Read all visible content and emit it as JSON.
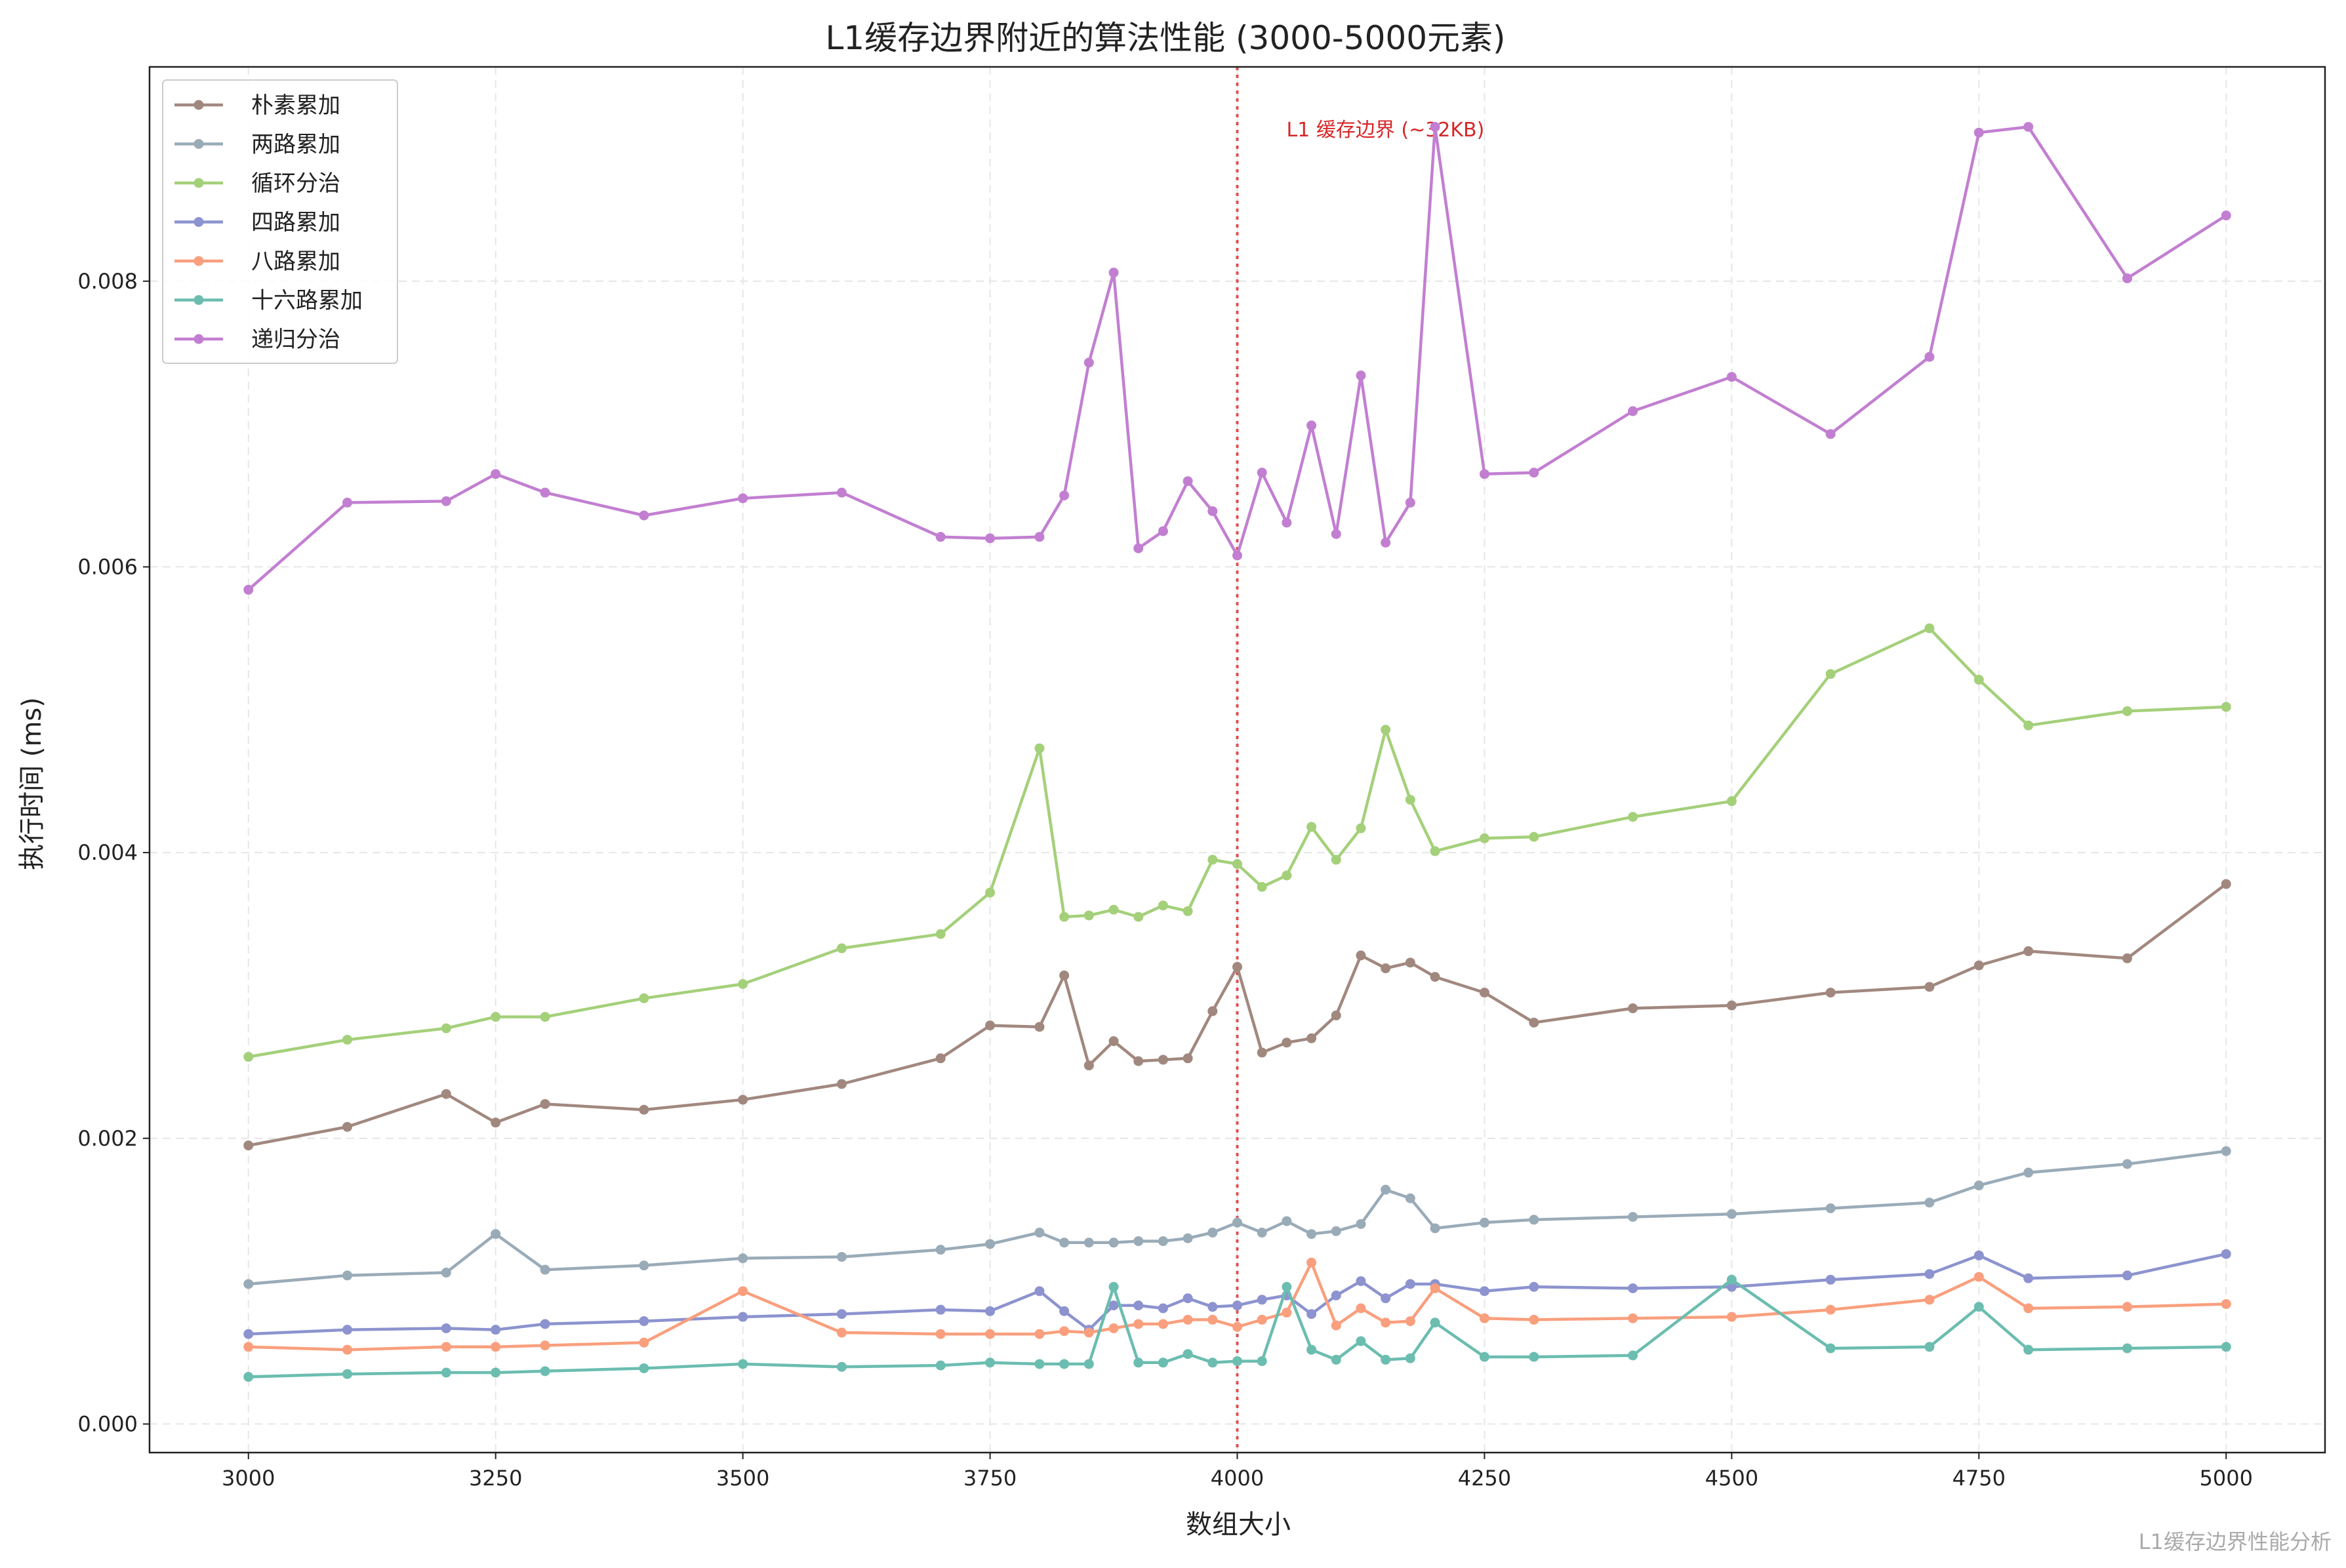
{
  "chart_data": {
    "type": "line",
    "title": "L1缓存边界附近的算法性能 (3000-5000元素)",
    "xlabel": "数组大小",
    "ylabel": "执行时间 (ms)",
    "xlim": [
      2900,
      5100
    ],
    "ylim": [
      -0.0002,
      0.0095
    ],
    "x_ticks": [
      3000,
      3250,
      3500,
      3750,
      4000,
      4250,
      4500,
      4750,
      5000
    ],
    "y_ticks": [
      0.0,
      0.002,
      0.004,
      0.006,
      0.008
    ],
    "y_tick_labels": [
      "0.000",
      "0.002",
      "0.004",
      "0.006",
      "0.008"
    ],
    "grid": true,
    "legend_position": "top-left",
    "vline": {
      "x": 4000,
      "label": "L1 缓存边界 (~32KB)",
      "color": "#d62728",
      "label_y": 0.00905
    },
    "watermark": "L1缓存边界性能分析",
    "series": [
      {
        "name": "朴素累加",
        "color": "#a1887f",
        "x": [
          3000,
          3100,
          3200,
          3250,
          3300,
          3400,
          3500,
          3600,
          3700,
          3750,
          3800,
          3825,
          3850,
          3875,
          3900,
          3925,
          3950,
          3975,
          4000,
          4025,
          4050,
          4075,
          4100,
          4125,
          4150,
          4175,
          4200,
          4250,
          4300,
          4400,
          4500,
          4600,
          4700,
          4750,
          4800,
          4900,
          5000
        ],
        "values": [
          0.00195,
          0.00208,
          0.00231,
          0.00211,
          0.00224,
          0.0022,
          0.00227,
          0.00238,
          0.00256,
          0.00279,
          0.00278,
          0.00314,
          0.00251,
          0.00268,
          0.00254,
          0.00255,
          0.00256,
          0.00289,
          0.0032,
          0.0026,
          0.00267,
          0.0027,
          0.00286,
          0.00328,
          0.00319,
          0.00323,
          0.00313,
          0.00302,
          0.00281,
          0.00291,
          0.00293,
          0.00302,
          0.00306,
          0.00321,
          0.00331,
          0.00326,
          0.00378
        ]
      },
      {
        "name": "两路累加",
        "color": "#9aabb8",
        "x": [
          3000,
          3100,
          3200,
          3250,
          3300,
          3400,
          3500,
          3600,
          3700,
          3750,
          3800,
          3825,
          3850,
          3875,
          3900,
          3925,
          3950,
          3975,
          4000,
          4025,
          4050,
          4075,
          4100,
          4125,
          4150,
          4175,
          4200,
          4250,
          4300,
          4400,
          4500,
          4600,
          4700,
          4750,
          4800,
          4900,
          5000
        ],
        "values": [
          0.00098,
          0.00104,
          0.00106,
          0.00133,
          0.00108,
          0.00111,
          0.00116,
          0.00117,
          0.00122,
          0.00126,
          0.00134,
          0.00127,
          0.00127,
          0.00127,
          0.00128,
          0.00128,
          0.0013,
          0.00134,
          0.00141,
          0.00134,
          0.00142,
          0.00133,
          0.00135,
          0.0014,
          0.00164,
          0.00158,
          0.00137,
          0.00141,
          0.00143,
          0.00145,
          0.00147,
          0.00151,
          0.00155,
          0.00167,
          0.00176,
          0.00182,
          0.00191
        ]
      },
      {
        "name": "循环分治",
        "color": "#a4d07a",
        "x": [
          3000,
          3100,
          3200,
          3250,
          3300,
          3400,
          3500,
          3600,
          3700,
          3750,
          3800,
          3825,
          3850,
          3875,
          3900,
          3925,
          3950,
          3975,
          4000,
          4025,
          4050,
          4075,
          4100,
          4125,
          4150,
          4175,
          4200,
          4250,
          4300,
          4400,
          4500,
          4600,
          4700,
          4750,
          4800,
          4900,
          5000
        ],
        "values": [
          0.00257,
          0.00269,
          0.00277,
          0.00285,
          0.00285,
          0.00298,
          0.00308,
          0.00333,
          0.00343,
          0.00372,
          0.00473,
          0.00355,
          0.00356,
          0.0036,
          0.00355,
          0.00363,
          0.00359,
          0.00395,
          0.00392,
          0.00376,
          0.00384,
          0.00418,
          0.00395,
          0.00417,
          0.00486,
          0.00437,
          0.00401,
          0.0041,
          0.00411,
          0.00425,
          0.00436,
          0.00525,
          0.00557,
          0.00521,
          0.00489,
          0.00499,
          0.00502
        ]
      },
      {
        "name": "四路累加",
        "color": "#8c93cf",
        "x": [
          3000,
          3100,
          3200,
          3250,
          3300,
          3400,
          3500,
          3600,
          3700,
          3750,
          3800,
          3825,
          3850,
          3875,
          3900,
          3925,
          3950,
          3975,
          4000,
          4025,
          4050,
          4075,
          4100,
          4125,
          4150,
          4175,
          4200,
          4250,
          4300,
          4400,
          4500,
          4600,
          4700,
          4750,
          4800,
          4900,
          5000
        ],
        "values": [
          0.00063,
          0.00066,
          0.00067,
          0.00066,
          0.0007,
          0.00072,
          0.00075,
          0.00077,
          0.0008,
          0.00079,
          0.00093,
          0.00079,
          0.00066,
          0.00083,
          0.00083,
          0.00081,
          0.00088,
          0.00082,
          0.00083,
          0.00087,
          0.0009,
          0.00077,
          0.0009,
          0.001,
          0.00088,
          0.00098,
          0.00098,
          0.00093,
          0.00096,
          0.00095,
          0.00096,
          0.00101,
          0.00105,
          0.00118,
          0.00102,
          0.00104,
          0.00119
        ]
      },
      {
        "name": "八路累加",
        "color": "#f99f7d",
        "x": [
          3000,
          3100,
          3200,
          3250,
          3300,
          3400,
          3500,
          3600,
          3700,
          3750,
          3800,
          3825,
          3850,
          3875,
          3900,
          3925,
          3950,
          3975,
          4000,
          4025,
          4050,
          4075,
          4100,
          4125,
          4150,
          4175,
          4200,
          4250,
          4300,
          4400,
          4500,
          4600,
          4700,
          4750,
          4800,
          4900,
          5000
        ],
        "values": [
          0.00054,
          0.00052,
          0.00054,
          0.00054,
          0.00055,
          0.00057,
          0.00093,
          0.00064,
          0.00063,
          0.00063,
          0.00063,
          0.00065,
          0.00064,
          0.00067,
          0.0007,
          0.0007,
          0.00073,
          0.00073,
          0.00068,
          0.00073,
          0.00078,
          0.00113,
          0.00069,
          0.00081,
          0.00071,
          0.00072,
          0.00095,
          0.00074,
          0.00073,
          0.00074,
          0.00075,
          0.0008,
          0.00087,
          0.00103,
          0.00081,
          0.00082,
          0.00084
        ]
      },
      {
        "name": "十六路累加",
        "color": "#6bbdb0",
        "x": [
          3000,
          3100,
          3200,
          3250,
          3300,
          3400,
          3500,
          3600,
          3700,
          3750,
          3800,
          3825,
          3850,
          3875,
          3900,
          3925,
          3950,
          3975,
          4000,
          4025,
          4050,
          4075,
          4100,
          4125,
          4150,
          4175,
          4200,
          4250,
          4300,
          4400,
          4500,
          4600,
          4700,
          4750,
          4800,
          4900,
          5000
        ],
        "values": [
          0.00033,
          0.00035,
          0.00036,
          0.00036,
          0.00037,
          0.00039,
          0.00042,
          0.0004,
          0.00041,
          0.00043,
          0.00042,
          0.00042,
          0.00042,
          0.00096,
          0.00043,
          0.00043,
          0.00049,
          0.00043,
          0.00044,
          0.00044,
          0.00096,
          0.00052,
          0.00045,
          0.00058,
          0.00045,
          0.00046,
          0.00071,
          0.00047,
          0.00047,
          0.00048,
          0.00101,
          0.00053,
          0.00054,
          0.00082,
          0.00052,
          0.00053,
          0.00054
        ]
      },
      {
        "name": "递归分治",
        "color": "#c27fd1",
        "x": [
          3000,
          3100,
          3200,
          3250,
          3300,
          3400,
          3500,
          3600,
          3700,
          3750,
          3800,
          3825,
          3850,
          3875,
          3900,
          3925,
          3950,
          3975,
          4000,
          4025,
          4050,
          4075,
          4100,
          4125,
          4150,
          4175,
          4200,
          4250,
          4300,
          4400,
          4500,
          4600,
          4700,
          4750,
          4800,
          4900,
          5000
        ],
        "values": [
          0.00584,
          0.00645,
          0.00646,
          0.00665,
          0.00652,
          0.00636,
          0.00648,
          0.00652,
          0.00621,
          0.0062,
          0.00621,
          0.0065,
          0.00743,
          0.00806,
          0.00613,
          0.00625,
          0.0066,
          0.00639,
          0.00608,
          0.00666,
          0.00631,
          0.00699,
          0.00623,
          0.00734,
          0.00617,
          0.00645,
          0.00908,
          0.00665,
          0.00666,
          0.00709,
          0.00733,
          0.00693,
          0.00747,
          0.00904,
          0.00908,
          0.00802,
          0.00846
        ]
      }
    ]
  }
}
